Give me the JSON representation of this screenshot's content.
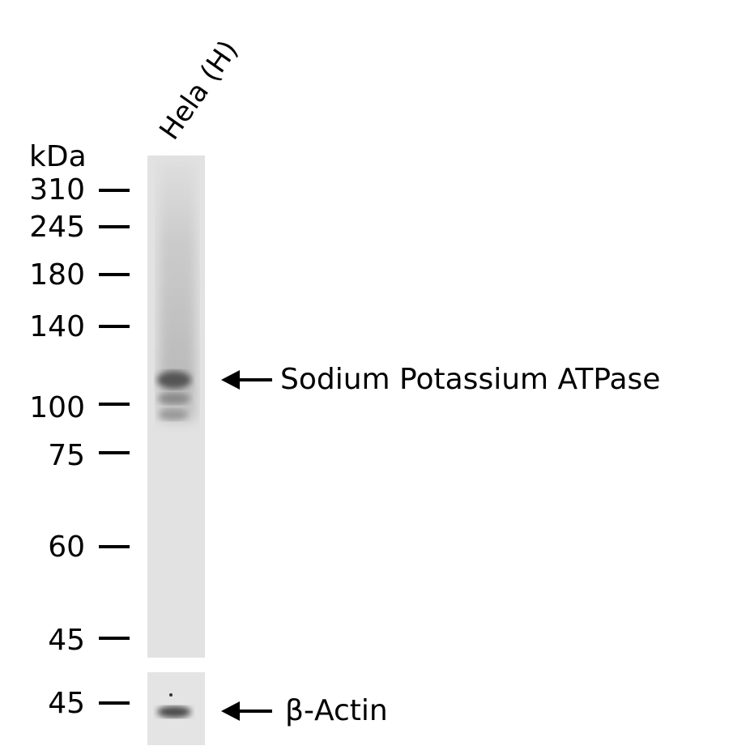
{
  "lanes": [
    {
      "label": "Hela (H)"
    }
  ],
  "unit_label": "kDa",
  "markers": [
    {
      "label": "310"
    },
    {
      "label": "245"
    },
    {
      "label": "180"
    },
    {
      "label": "140"
    },
    {
      "label": "100"
    },
    {
      "label": "75"
    },
    {
      "label": "60"
    },
    {
      "label": "45"
    }
  ],
  "loading_marker": {
    "label": "45"
  },
  "annotations": {
    "target": "Sodium Potassium ATPase",
    "control": "β-Actin"
  },
  "colors": {
    "membrane": "#e2e2e2",
    "band": "#555555"
  }
}
